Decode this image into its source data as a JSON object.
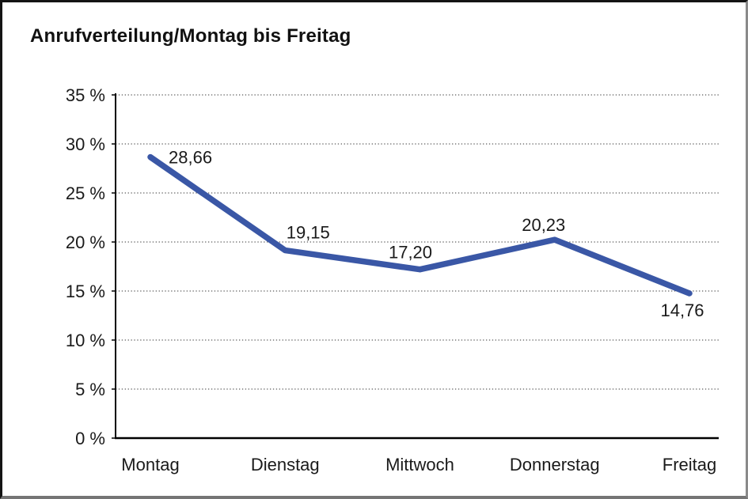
{
  "title": "Anrufverteilung/Montag bis Freitag",
  "chart_data": {
    "type": "line",
    "title": "Anrufverteilung/Montag bis Freitag",
    "categories": [
      "Montag",
      "Dienstag",
      "Mittwoch",
      "Donnerstag",
      "Freitag"
    ],
    "values": [
      28.66,
      19.15,
      17.2,
      20.23,
      14.76
    ],
    "point_labels": [
      "28,66",
      "19,15",
      "17,20",
      "20,23",
      "14,76"
    ],
    "series_name": "Anrufverteilung",
    "y_ticks": [
      0,
      5,
      10,
      15,
      20,
      25,
      30,
      35
    ],
    "y_tick_labels": [
      "0 %",
      "5 %",
      "10 %",
      "15 %",
      "20 %",
      "25 %",
      "30 %",
      "35 %"
    ],
    "ylim": [
      0,
      35
    ],
    "xlabel": "",
    "ylabel": "",
    "grid": "horizontal-dotted",
    "legend": "none",
    "colors": {
      "line": "#3a57a6",
      "axis": "#000000",
      "gridline": "#5a5a5a",
      "text": "#1a1a1a"
    }
  }
}
